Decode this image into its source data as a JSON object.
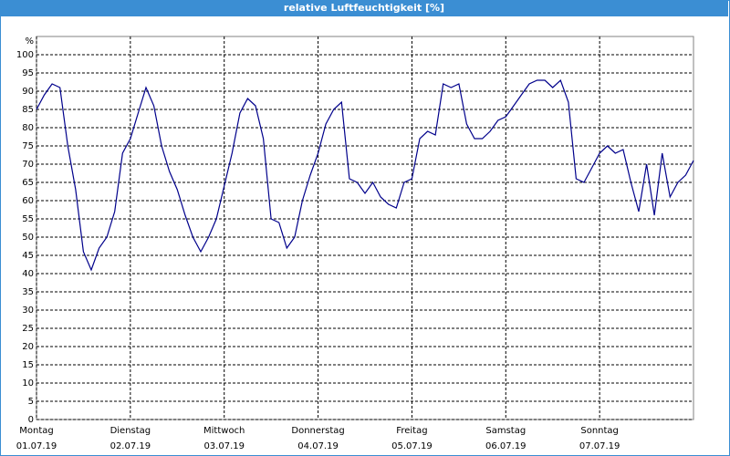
{
  "chart_data": {
    "type": "line",
    "title": "relative Luftfeuchtigkeit [%]",
    "y_label": "%",
    "x": [
      0,
      2,
      4,
      6,
      8,
      10,
      12,
      14,
      16,
      18,
      20,
      22,
      24,
      26,
      28,
      30,
      32,
      34,
      36,
      38,
      40,
      42,
      44,
      46,
      48,
      50,
      52,
      54,
      56,
      58,
      60,
      62,
      64,
      66,
      68,
      70,
      72,
      74,
      76,
      78,
      80,
      82,
      84,
      86,
      88,
      90,
      92,
      94,
      96,
      98,
      100,
      102,
      104,
      106,
      108,
      110,
      112,
      114,
      116,
      118,
      120,
      122,
      124,
      126,
      128,
      130,
      132,
      134,
      136,
      138,
      140,
      142,
      144,
      146,
      148,
      150,
      152,
      154,
      156,
      158,
      160,
      162,
      164,
      166,
      168
    ],
    "series": [
      {
        "name": "relative Luftfeuchtigkeit",
        "color": "#00008b",
        "values": [
          85,
          89,
          92,
          91,
          75,
          63,
          46,
          41,
          47,
          50,
          57,
          73,
          77,
          84,
          91,
          86,
          75,
          68,
          63,
          56,
          50,
          46,
          50,
          55,
          64,
          73,
          84,
          88,
          86,
          77,
          55,
          54,
          47,
          50,
          60,
          67,
          73,
          81,
          85,
          87,
          66,
          65,
          62,
          65,
          61,
          59,
          58,
          65,
          66,
          77,
          79,
          78,
          92,
          91,
          92,
          81,
          77,
          77,
          79,
          82,
          83,
          86,
          89,
          92,
          93,
          93,
          91,
          93,
          87,
          66,
          65,
          69,
          73,
          75,
          73,
          74,
          65,
          57,
          70,
          56,
          73,
          61,
          65,
          67,
          71
        ]
      }
    ],
    "xlim": [
      0,
      168
    ],
    "xticks": [
      {
        "value": 0,
        "label": "Montag",
        "date": "01.07.19"
      },
      {
        "value": 24,
        "label": "Dienstag",
        "date": "02.07.19"
      },
      {
        "value": 48,
        "label": "Mittwoch",
        "date": "03.07.19"
      },
      {
        "value": 72,
        "label": "Donnerstag",
        "date": "04.07.19"
      },
      {
        "value": 96,
        "label": "Freitag",
        "date": "05.07.19"
      },
      {
        "value": 120,
        "label": "Samstag",
        "date": "06.07.19"
      },
      {
        "value": 144,
        "label": "Sonntag",
        "date": "07.07.19"
      }
    ],
    "ylim": [
      0,
      105
    ],
    "yticks": [
      0,
      5,
      10,
      15,
      20,
      25,
      30,
      35,
      40,
      45,
      50,
      55,
      60,
      65,
      70,
      75,
      80,
      85,
      90,
      95,
      100
    ],
    "grid": true
  }
}
